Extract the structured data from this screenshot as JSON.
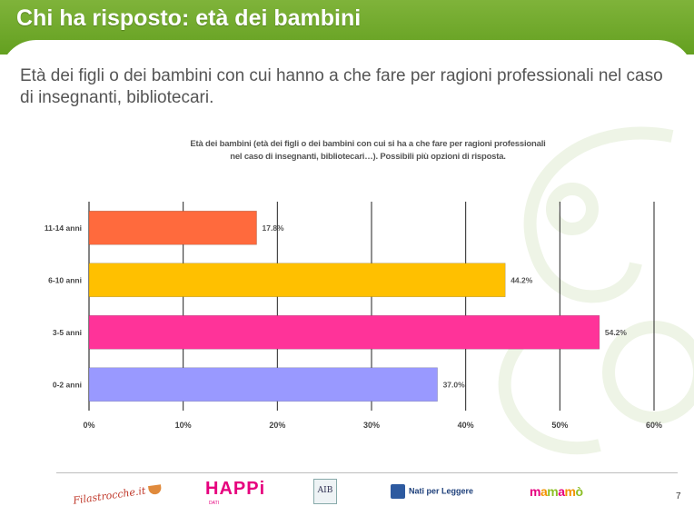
{
  "slide": {
    "title": "Chi ha risposto: età dei bambini",
    "subtitle": "Età dei figli o dei bambini con cui hanno a che fare per ragioni professionali nel caso di insegnanti, bibliotecari.",
    "page_number": "7"
  },
  "chart_data": {
    "type": "bar",
    "orientation": "horizontal",
    "title_line1": "Età dei bambini (età dei figli o dei bambini con cui si ha a che fare per ragioni professionali",
    "title_line2": "nel caso di insegnanti, bibliotecari…). Possibili più opzioni di risposta.",
    "categories": [
      "11-14 anni",
      "6-10 anni",
      "3-5 anni",
      "0-2 anni"
    ],
    "values": [
      17.8,
      44.2,
      54.2,
      37.0
    ],
    "value_labels": [
      "17.8%",
      "44.2%",
      "54.2%",
      "37.0%"
    ],
    "colors": [
      "#ff6a3d",
      "#ffc000",
      "#ff3399",
      "#9999ff"
    ],
    "xlim": [
      0,
      60
    ],
    "xticks": [
      0,
      10,
      20,
      30,
      40,
      50,
      60
    ],
    "xtick_labels": [
      "0%",
      "10%",
      "20%",
      "30%",
      "40%",
      "50%",
      "60%"
    ],
    "grid": true,
    "legend": "none"
  },
  "footer": {
    "logos": [
      "Filastrocche.it",
      "HAPPi",
      "AIB",
      "Nati per Leggere",
      "mamamò"
    ],
    "happi_sub": "DATI"
  },
  "colors": {
    "header_green": "#6aa829",
    "text_gray": "#555555"
  }
}
